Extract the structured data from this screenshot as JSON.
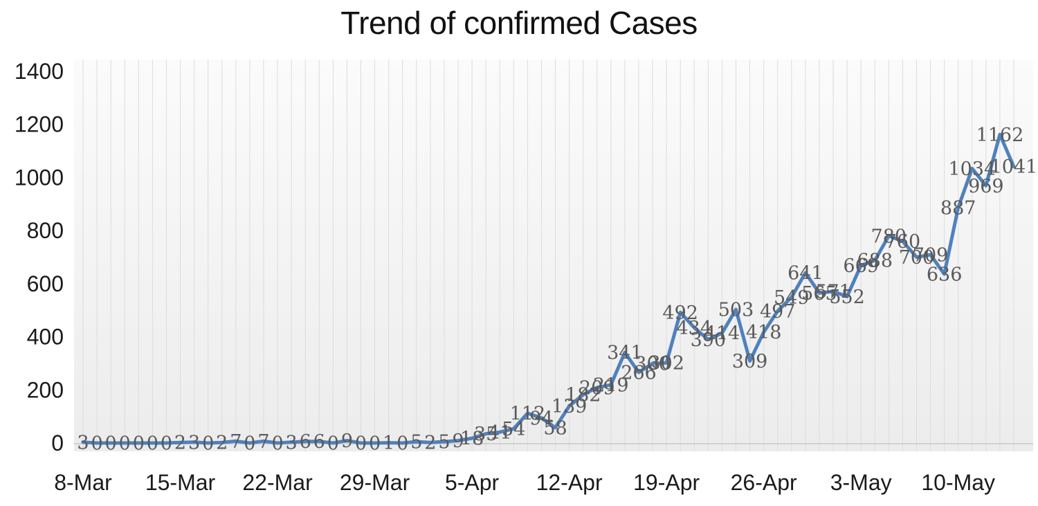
{
  "chart_data": {
    "type": "line",
    "title": "Trend of confirmed Cases",
    "xlabel": "",
    "ylabel": "",
    "x_tick_labels": [
      "8-Mar",
      "15-Mar",
      "22-Mar",
      "29-Mar",
      "5-Apr",
      "12-Apr",
      "19-Apr",
      "26-Apr",
      "3-May",
      "10-May"
    ],
    "x_tick_interval": 7,
    "y_ticks": [
      0,
      200,
      400,
      600,
      800,
      1000,
      1200,
      1400
    ],
    "ylim": [
      0,
      1400
    ],
    "grid": "vertical-per-point",
    "legend": "none",
    "data_labels": "centered-on-points",
    "line_color": "#4f81bd",
    "data_label_color": "#595959",
    "axis_label_color": "#1a1a1a",
    "gridline_color": "#dcdcdc",
    "plot_bg_top": "#fbfbfb",
    "plot_bg_bottom": "#ececec",
    "series": [
      {
        "name": "Confirmed cases",
        "values": [
          3,
          0,
          0,
          0,
          0,
          0,
          0,
          2,
          3,
          0,
          2,
          7,
          0,
          7,
          0,
          3,
          6,
          6,
          0,
          9,
          0,
          0,
          1,
          0,
          5,
          2,
          5,
          9,
          18,
          35,
          41,
          54,
          112,
          94,
          58,
          139,
          182,
          209,
          219,
          341,
          266,
          300,
          302,
          492,
          434,
          390,
          414,
          503,
          309,
          418,
          497,
          549,
          641,
          565,
          571,
          552,
          669,
          688,
          780,
          760,
          700,
          709,
          636,
          887,
          1034,
          969,
          1162,
          1041
        ]
      }
    ]
  }
}
